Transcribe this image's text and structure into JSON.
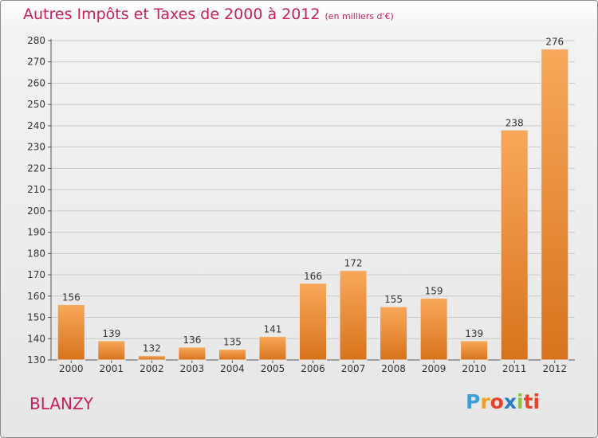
{
  "header": {
    "title": "Autres Impôts et Taxes de 2000 à 2012",
    "unit": "(en milliers d'€)"
  },
  "footer": {
    "place": "BLANZY",
    "logo": [
      "P",
      "r",
      "o",
      "x",
      "i",
      "ti"
    ]
  },
  "colors": {
    "bar_top": "#f8a85a",
    "bar_bottom": "#d8731c",
    "grid": "#c8c8c8",
    "accent": "#c8205e"
  },
  "chart_data": {
    "type": "bar",
    "categories": [
      "2000",
      "2001",
      "2002",
      "2003",
      "2004",
      "2005",
      "2006",
      "2007",
      "2008",
      "2009",
      "2010",
      "2011",
      "2012"
    ],
    "values": [
      156,
      139,
      132,
      136,
      135,
      141,
      166,
      172,
      155,
      159,
      139,
      238,
      276
    ],
    "data_labels": [
      "156",
      "139",
      "132",
      "136",
      "135",
      "141",
      "166",
      "172",
      "155",
      "159",
      "139",
      "238",
      "276"
    ],
    "ylim": [
      130,
      280
    ],
    "yticks": [
      130,
      140,
      150,
      160,
      170,
      180,
      190,
      200,
      210,
      220,
      230,
      240,
      250,
      260,
      270,
      280
    ],
    "grid": true
  }
}
